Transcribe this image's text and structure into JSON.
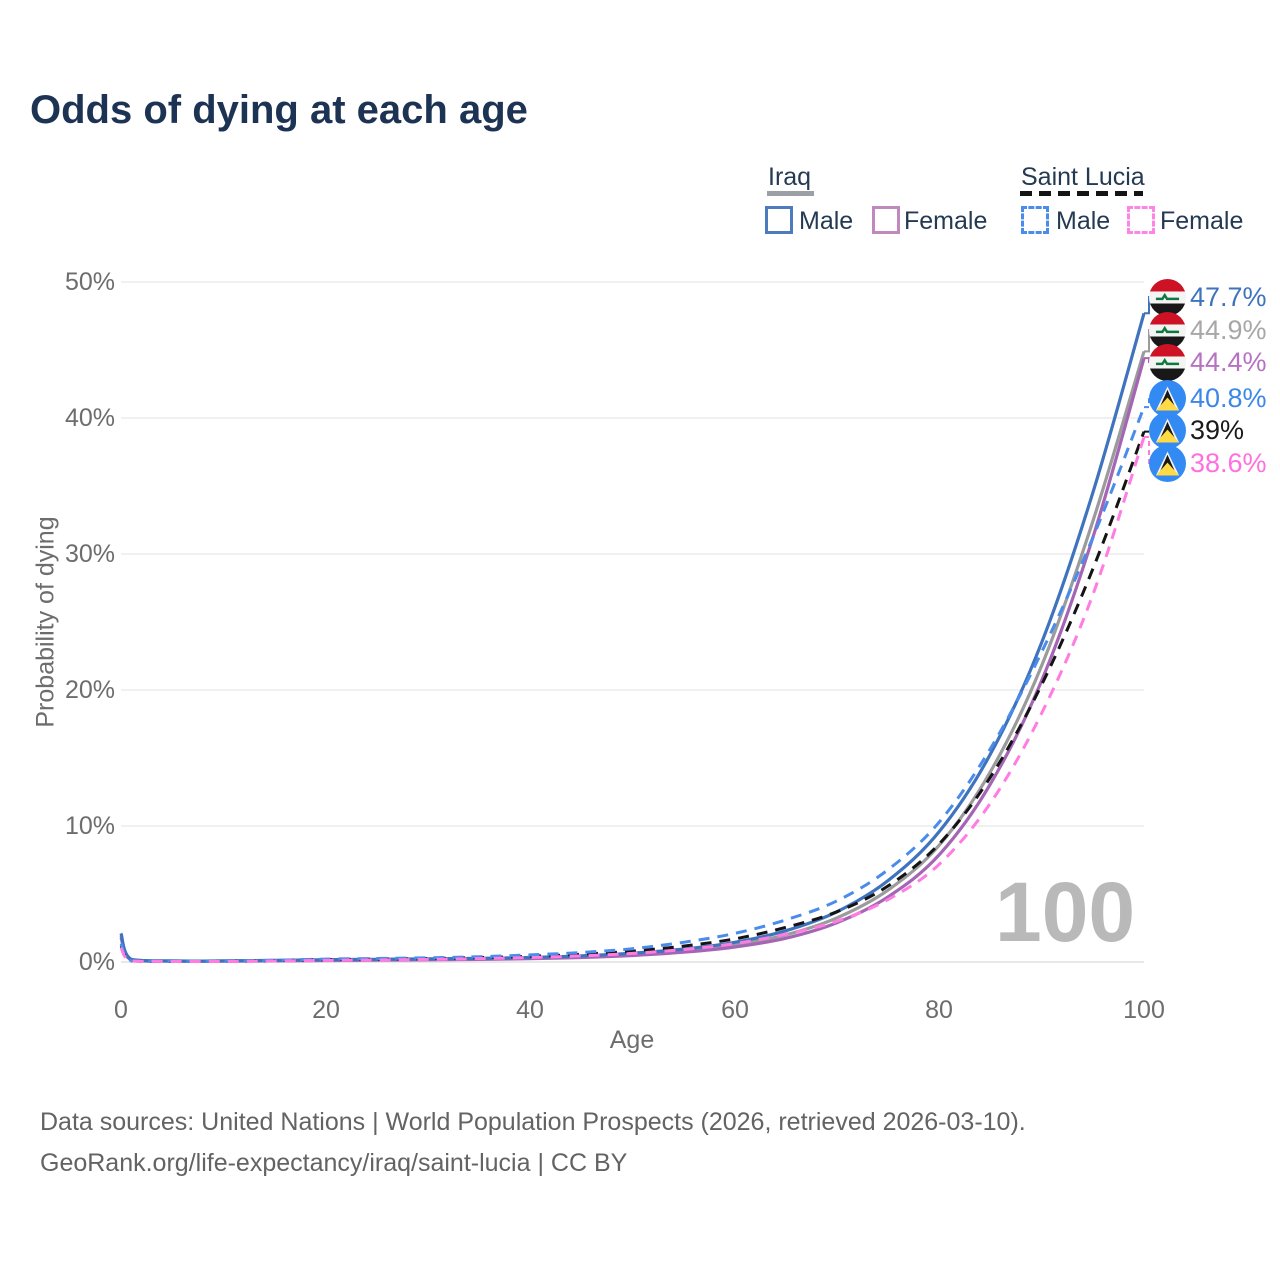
{
  "title": "Odds of dying at each age",
  "legend": {
    "groups": [
      {
        "name": "Iraq",
        "line_style": "solid",
        "underline_color": "#9aa0a6",
        "items": [
          {
            "label": "Male",
            "color": "#4d7cbe"
          },
          {
            "label": "Female",
            "color": "#c089bd"
          }
        ]
      },
      {
        "name": "Saint Lucia",
        "line_style": "dashed",
        "underline_color": "#141414",
        "items": [
          {
            "label": "Male",
            "color": "#4a8cec"
          },
          {
            "label": "Female",
            "color": "#ff85e5"
          }
        ]
      }
    ]
  },
  "chart_data": {
    "type": "line",
    "title": "Odds of dying at each age",
    "xlabel": "Age",
    "ylabel": "Probability of dying",
    "xlim": [
      0,
      100
    ],
    "ylim": [
      0,
      50
    ],
    "y_unit": "%",
    "grid": "horizontal",
    "legend_position": "top-right",
    "x_tick_labels": [
      "0",
      "20",
      "40",
      "60",
      "80",
      "100"
    ],
    "y_tick_labels": [
      "0%",
      "10%",
      "20%",
      "30%",
      "40%",
      "50%"
    ],
    "x": [
      0,
      1,
      5,
      10,
      15,
      20,
      25,
      30,
      35,
      40,
      45,
      50,
      55,
      60,
      65,
      70,
      75,
      80,
      85,
      90,
      95,
      100
    ],
    "series": [
      {
        "name": "Iraq Male",
        "country": "Iraq",
        "sex": "Male",
        "style": "solid",
        "color": "#3f73bd",
        "label_color": "#3f73bd",
        "flag": "iraq",
        "end_label": "47.7%",
        "end_value": 47.7,
        "values": [
          2.1,
          0.2,
          0.08,
          0.08,
          0.12,
          0.17,
          0.2,
          0.23,
          0.27,
          0.33,
          0.45,
          0.65,
          0.95,
          1.45,
          2.3,
          3.7,
          6.0,
          9.6,
          15.3,
          23.5,
          34.5,
          47.7
        ]
      },
      {
        "name": "Iraq",
        "country": "Iraq",
        "sex": "Both",
        "style": "solid",
        "color": "#9b9b9b",
        "label_color": "#a7a7a7",
        "flag": "iraq",
        "end_label": "44.9%",
        "end_value": 44.9,
        "values": [
          1.95,
          0.18,
          0.07,
          0.07,
          0.1,
          0.14,
          0.17,
          0.19,
          0.23,
          0.29,
          0.39,
          0.56,
          0.83,
          1.27,
          2.0,
          3.25,
          5.3,
          8.6,
          14.0,
          21.8,
          32.4,
          44.9
        ]
      },
      {
        "name": "Iraq Female",
        "country": "Iraq",
        "sex": "Female",
        "style": "solid",
        "color": "#a565b5",
        "label_color": "#b671c3",
        "flag": "iraq",
        "end_label": "44.4%",
        "end_value": 44.4,
        "values": [
          1.8,
          0.15,
          0.06,
          0.06,
          0.08,
          0.11,
          0.13,
          0.16,
          0.19,
          0.25,
          0.33,
          0.48,
          0.72,
          1.1,
          1.75,
          2.9,
          4.8,
          7.9,
          13.1,
          20.7,
          31.2,
          44.4
        ]
      },
      {
        "name": "Saint Lucia Male",
        "country": "Saint Lucia",
        "sex": "Male",
        "style": "dashed",
        "color": "#4a8cec",
        "label_color": "#3d87e8",
        "flag": "saint-lucia",
        "end_label": "40.8%",
        "end_value": 40.8,
        "values": [
          1.35,
          0.1,
          0.05,
          0.06,
          0.13,
          0.21,
          0.26,
          0.31,
          0.39,
          0.52,
          0.7,
          0.98,
          1.45,
          2.1,
          3.1,
          4.5,
          6.8,
          10.3,
          15.7,
          22.8,
          31.2,
          40.8
        ]
      },
      {
        "name": "Saint Lucia",
        "country": "Saint Lucia",
        "sex": "Both",
        "style": "dashed",
        "color": "#141414",
        "label_color": "#1a1a1a",
        "flag": "saint-lucia",
        "end_label": "39%",
        "end_value": 39.0,
        "values": [
          1.2,
          0.09,
          0.04,
          0.05,
          0.1,
          0.17,
          0.21,
          0.25,
          0.32,
          0.42,
          0.57,
          0.8,
          1.17,
          1.7,
          2.55,
          3.7,
          5.6,
          8.7,
          13.6,
          20.4,
          28.9,
          39.0
        ]
      },
      {
        "name": "Saint Lucia Female",
        "country": "Saint Lucia",
        "sex": "Female",
        "style": "dashed",
        "color": "#ff7ce2",
        "label_color": "#ff6fdf",
        "flag": "saint-lucia",
        "end_label": "38.6%",
        "end_value": 38.6,
        "values": [
          1.05,
          0.08,
          0.04,
          0.04,
          0.07,
          0.12,
          0.15,
          0.19,
          0.25,
          0.33,
          0.45,
          0.63,
          0.92,
          1.35,
          2.05,
          3.0,
          4.6,
          7.2,
          11.7,
          18.3,
          27.0,
          38.6
        ]
      }
    ]
  },
  "annotations": {
    "age_indicator": "100"
  },
  "icons": {
    "iraq_flag_colors": {
      "red": "#cd1225",
      "white": "#f4f4f4",
      "black": "#181818",
      "green": "#0c7a3e"
    },
    "saint_lucia_flag_colors": {
      "blue": "#338af3",
      "white": "#f4f4f4",
      "black": "#191919",
      "yellow": "#ffda44"
    }
  },
  "footer": {
    "line1": "Data sources: United Nations | World Population Prospects (2026, retrieved 2026-03-10).",
    "line2": "GeoRank.org/life-expectancy/iraq/saint-lucia | CC BY"
  }
}
